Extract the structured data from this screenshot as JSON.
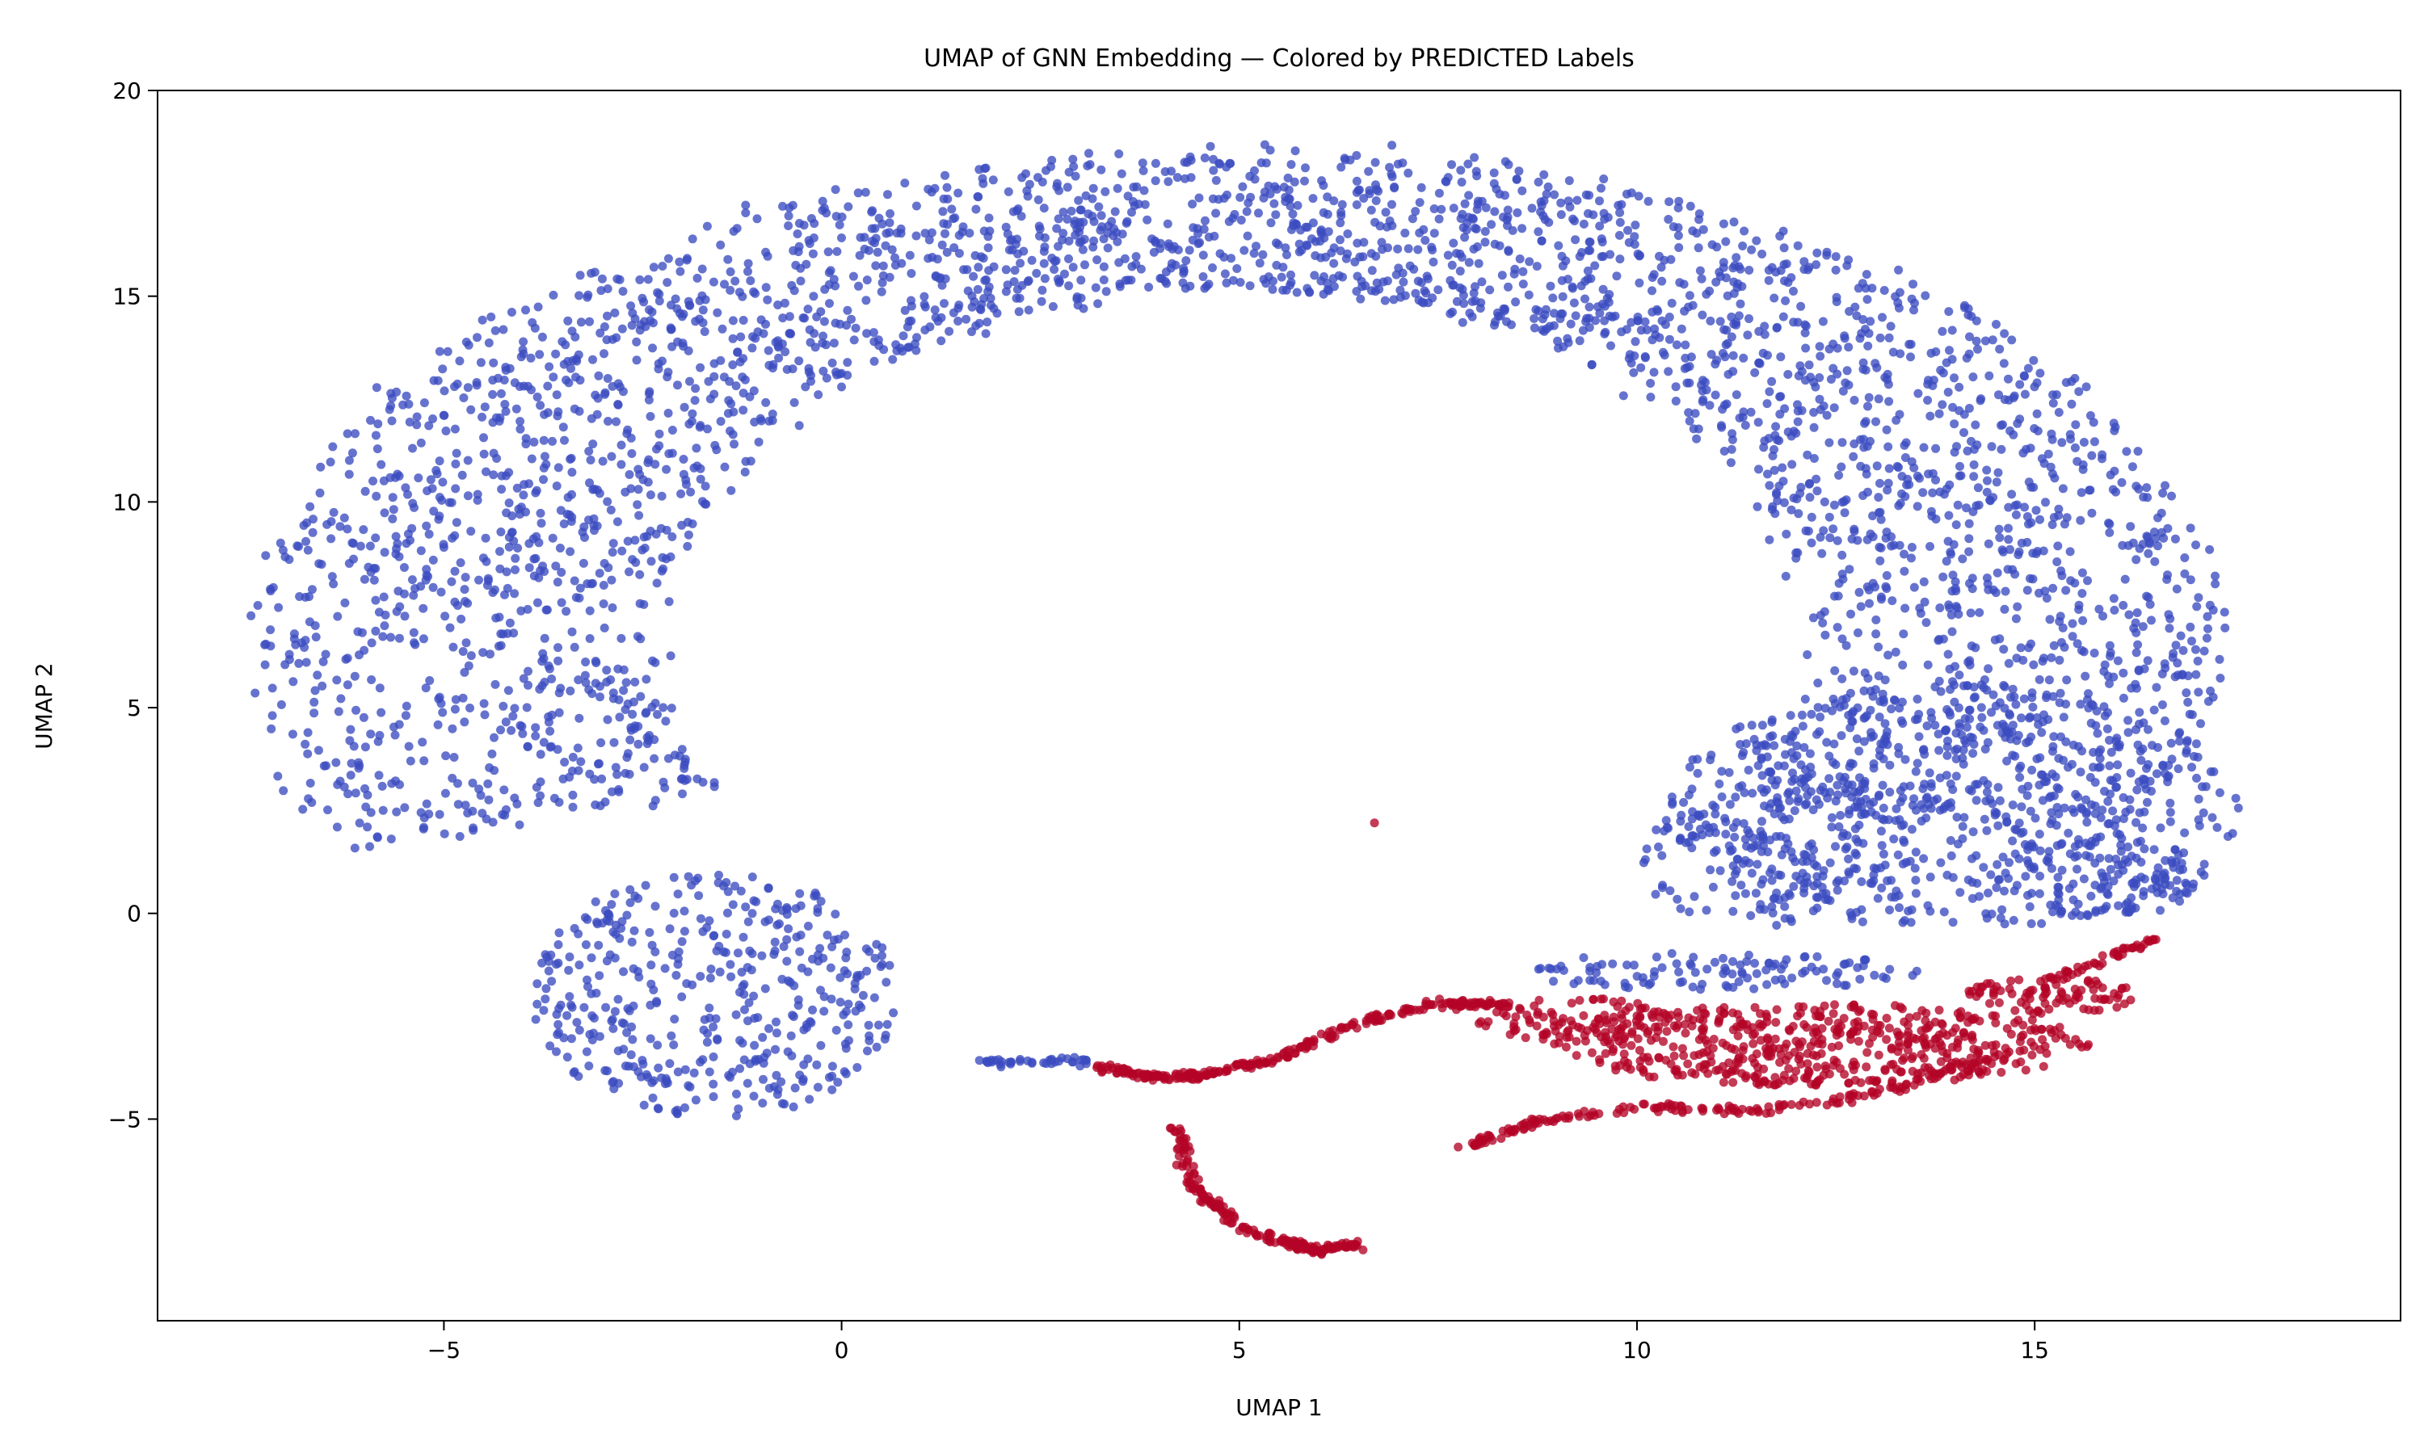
{
  "chart_data": {
    "type": "scatter",
    "title": "UMAP of GNN Embedding — Colored by PREDICTED Labels",
    "xlabel": "UMAP 1",
    "ylabel": "UMAP 2",
    "xlim": [
      -8.6,
      19.6
    ],
    "ylim": [
      -9.9,
      20
    ],
    "xticks": [
      -5,
      0,
      5,
      10,
      15
    ],
    "yticks": [
      -5,
      0,
      5,
      10,
      15,
      20
    ],
    "xtick_labels": [
      "−5",
      "0",
      "5",
      "10",
      "15"
    ],
    "ytick_labels": [
      "−5",
      "0",
      "5",
      "10",
      "15",
      "20"
    ],
    "grid": false,
    "legend": null,
    "colors": {
      "class_0": "#3b4cc0",
      "class_1": "#b40426"
    },
    "series": [
      {
        "color_key": "class_0",
        "regions": [
          {
            "shape": "annulus",
            "cx": 5.0,
            "cy": 6.6,
            "inner_rx": 7.2,
            "inner_ry": 8.6,
            "outer_rx": 12.4,
            "outer_ry": 12.0,
            "theta_range_deg": [
              -25,
              205
            ],
            "n": 3200
          },
          {
            "shape": "ellipse",
            "cx": -1.6,
            "cy": -2.0,
            "rx": 2.3,
            "ry": 3.0,
            "n": 420
          },
          {
            "shape": "ellipse",
            "cx": 14.0,
            "cy": 2.6,
            "rx": 3.6,
            "ry": 3.0,
            "n": 520
          },
          {
            "shape": "ellipse",
            "cx": 11.8,
            "cy": 1.4,
            "rx": 1.8,
            "ry": 1.9,
            "n": 180
          },
          {
            "shape": "ellipse",
            "cx": 15.8,
            "cy": 0.9,
            "rx": 1.4,
            "ry": 1.0,
            "n": 130
          },
          {
            "shape": "ellipse",
            "cx": 11.0,
            "cy": -1.4,
            "rx": 2.6,
            "ry": 0.45,
            "n": 110
          }
        ],
        "strands": [
          {
            "points": [
              [
                1.7,
                -3.6
              ],
              [
                2.6,
                -3.6
              ],
              [
                3.1,
                -3.6
              ]
            ],
            "n": 40
          }
        ]
      },
      {
        "color_key": "class_1",
        "regions": [
          {
            "shape": "ellipse",
            "cx": 12.3,
            "cy": -3.2,
            "rx": 3.4,
            "ry": 1.0,
            "n": 520
          },
          {
            "shape": "ellipse",
            "cx": 9.3,
            "cy": -2.6,
            "rx": 1.3,
            "ry": 0.55,
            "n": 90
          },
          {
            "shape": "ellipse",
            "cx": 15.2,
            "cy": -2.0,
            "rx": 1.1,
            "ry": 0.45,
            "n": 90
          }
        ],
        "strands": [
          {
            "points": [
              [
                3.2,
                -3.7
              ],
              [
                3.8,
                -3.95
              ],
              [
                4.5,
                -3.95
              ],
              [
                5.5,
                -3.5
              ],
              [
                6.4,
                -2.7
              ],
              [
                7.5,
                -2.2
              ],
              [
                8.4,
                -2.2
              ]
            ],
            "n": 260
          },
          {
            "points": [
              [
                4.2,
                -5.2
              ],
              [
                4.4,
                -6.6
              ],
              [
                5.0,
                -7.6
              ],
              [
                5.7,
                -8.1
              ],
              [
                6.0,
                -8.2
              ],
              [
                6.5,
                -8.0
              ]
            ],
            "n": 190
          },
          {
            "points": [
              [
                7.8,
                -5.7
              ],
              [
                8.8,
                -5.0
              ],
              [
                10.2,
                -4.7
              ],
              [
                11.6,
                -4.8
              ],
              [
                13.2,
                -4.3
              ],
              [
                14.6,
                -3.4
              ]
            ],
            "n": 170
          },
          {
            "points": [
              [
                15.2,
                -1.6
              ],
              [
                15.9,
                -1.1
              ],
              [
                16.5,
                -0.6
              ]
            ],
            "n": 40
          }
        ],
        "points": [
          [
            6.7,
            2.2
          ]
        ]
      }
    ]
  }
}
